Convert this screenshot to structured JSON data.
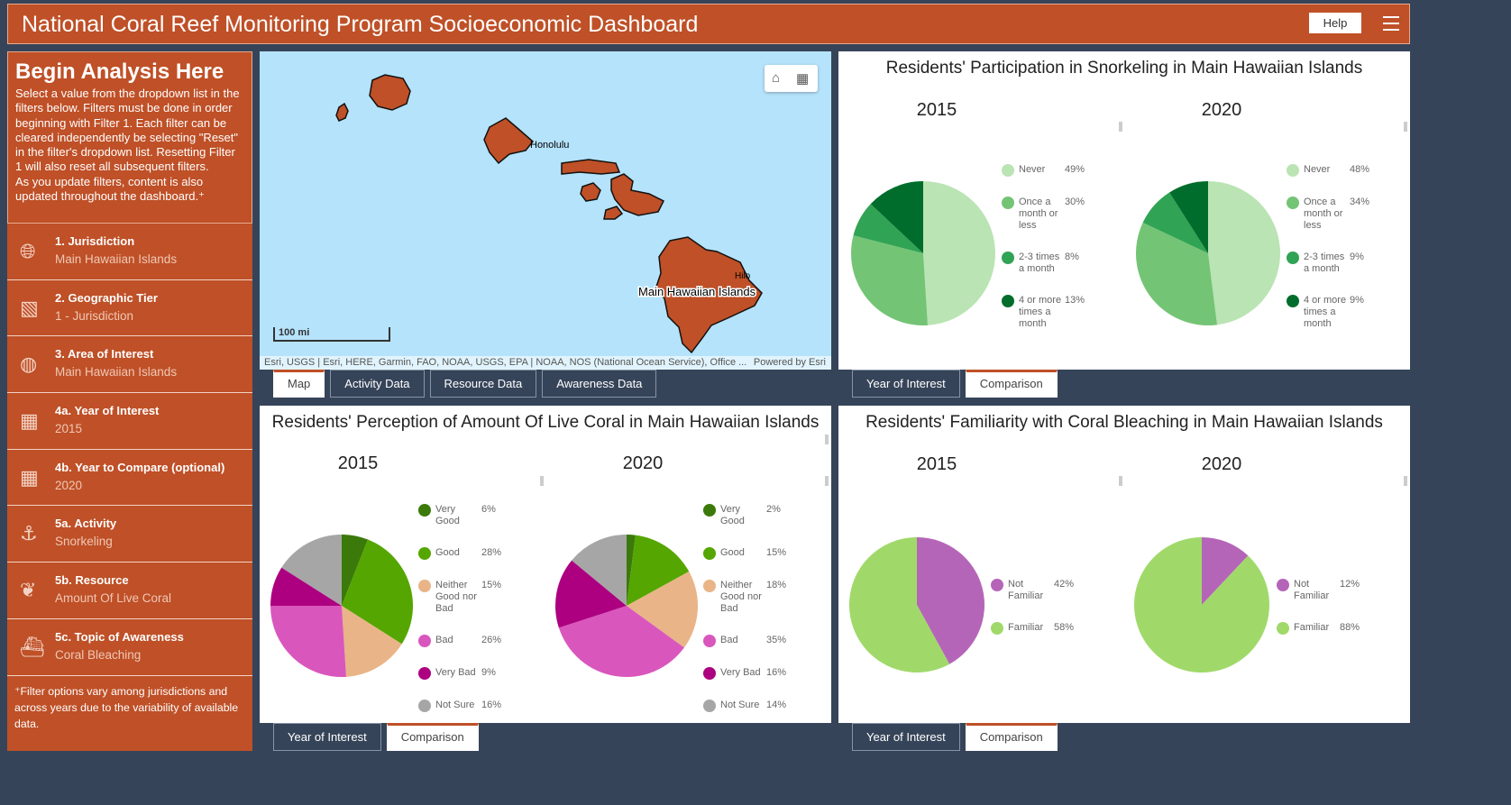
{
  "header": {
    "title": "National Coral Reef Monitoring Program Socioeconomic Dashboard",
    "help_label": "Help"
  },
  "sidebar": {
    "heading": "Begin Analysis Here",
    "intro": "Select a value from the dropdown list in the filters below. Filters must be done in order beginning with Filter 1. Each filter can be cleared independently be selecting \"Reset\" in the filter's dropdown list. Resetting Filter 1 will also reset all subsequent filters.",
    "intro2": "As you update filters, content is also updated throughout the dashboard.⁺",
    "filters": [
      {
        "label": "1. Jurisdiction",
        "value": "Main Hawaiian Islands",
        "icon": "globe-icon"
      },
      {
        "label": "2. Geographic Tier",
        "value": "1 - Jurisdiction",
        "icon": "map-tier-icon"
      },
      {
        "label": "3. Area of Interest",
        "value": "Main Hawaiian Islands",
        "icon": "globe-cursor-icon"
      },
      {
        "label": "4a. Year of Interest",
        "value": "2015",
        "icon": "calendar-icon"
      },
      {
        "label": "4b. Year to Compare (optional)",
        "value": "2020",
        "icon": "calendar-icon"
      },
      {
        "label": "5a. Activity",
        "value": "Snorkeling",
        "icon": "fishing-icon"
      },
      {
        "label": "5b. Resource",
        "value": "Amount Of Live Coral",
        "icon": "coral-icon"
      },
      {
        "label": "5c. Topic of Awareness",
        "value": "Coral Bleaching",
        "icon": "boat-icon"
      }
    ],
    "footnote": "⁺Filter options vary among jurisdictions and across years due to the variability of available data."
  },
  "map": {
    "labels": {
      "honolulu": "Honolulu",
      "hilo": "Hilo",
      "main": "Main Hawaiian Islands"
    },
    "scale": "100 mi",
    "attribution": "Esri, USGS | Esri, HERE, Garmin, FAO, NOAA, USGS, EPA | NOAA, NOS (National Ocean Service), Office ...",
    "powered": "Powered by Esri",
    "tabs": [
      "Map",
      "Activity Data",
      "Resource Data",
      "Awareness Data"
    ],
    "active_tab": 0
  },
  "colors": {
    "brand": "#bf5027",
    "background": "#364459"
  },
  "chart_data": [
    {
      "type": "pie",
      "title": "Residents' Participation in Snorkeling in Main Hawaiian Islands",
      "tabs": [
        "Year of Interest",
        "Comparison"
      ],
      "active_tab": 1,
      "categories": [
        "Never",
        "Once a month or less",
        "2-3 times a month",
        "4 or more times a month"
      ],
      "colors": [
        "#bae4b3",
        "#74c476",
        "#31a354",
        "#006d2c"
      ],
      "series": [
        {
          "name": "2015",
          "values": [
            49,
            30,
            8,
            13
          ]
        },
        {
          "name": "2020",
          "values": [
            48,
            34,
            9,
            9
          ]
        }
      ]
    },
    {
      "type": "pie",
      "title": "Residents' Perception of Amount Of Live Coral in Main Hawaiian Islands",
      "tabs": [
        "Year of Interest",
        "Comparison"
      ],
      "active_tab": 1,
      "categories": [
        "Very Good",
        "Good",
        "Neither Good nor Bad",
        "Bad",
        "Very Bad",
        "Not Sure"
      ],
      "colors": [
        "#3b7a0a",
        "#55a600",
        "#e9b487",
        "#d957bd",
        "#ad0080",
        "#a6a6a6"
      ],
      "series": [
        {
          "name": "2015",
          "values": [
            6,
            28,
            15,
            26,
            9,
            16
          ]
        },
        {
          "name": "2020",
          "values": [
            2,
            15,
            18,
            35,
            16,
            14
          ]
        }
      ]
    },
    {
      "type": "pie",
      "title": "Residents' Familiarity with Coral Bleaching in Main Hawaiian Islands",
      "tabs": [
        "Year of Interest",
        "Comparison"
      ],
      "active_tab": 1,
      "categories": [
        "Not Familiar",
        "Familiar"
      ],
      "colors": [
        "#b565b8",
        "#a0d96a"
      ],
      "series": [
        {
          "name": "2015",
          "values": [
            42,
            58
          ]
        },
        {
          "name": "2020",
          "values": [
            12,
            88
          ]
        }
      ]
    }
  ]
}
